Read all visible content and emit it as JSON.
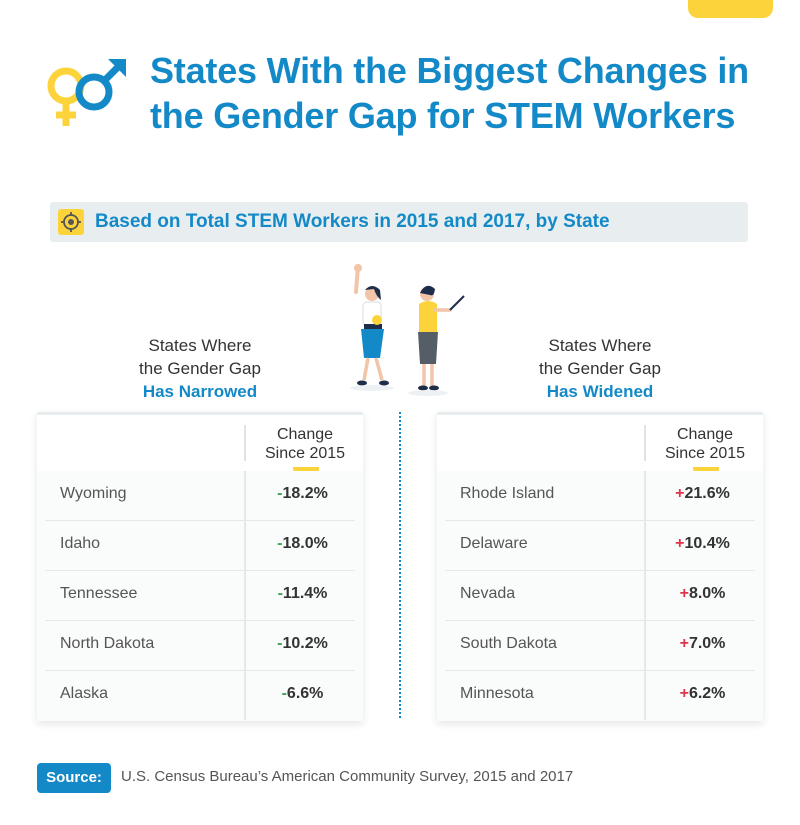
{
  "header": {
    "title": "States With the Biggest Changes in the Gender Gap for STEM Workers",
    "subtitle": "Based on Total STEM Workers in 2015 and 2017, by State"
  },
  "left_panel": {
    "heading_line1": "States Where",
    "heading_line2": "the Gender Gap",
    "heading_highlight": "Has Narrowed",
    "column_header_line1": "Change",
    "column_header_line2": "Since 2015",
    "rows": [
      {
        "state": "Wyoming",
        "sign": "-",
        "value": "18.2%"
      },
      {
        "state": "Idaho",
        "sign": "-",
        "value": "18.0%"
      },
      {
        "state": "Tennessee",
        "sign": "-",
        "value": "11.4%"
      },
      {
        "state": "North Dakota",
        "sign": "-",
        "value": "10.2%"
      },
      {
        "state": "Alaska",
        "sign": "-",
        "value": "6.6%"
      }
    ]
  },
  "right_panel": {
    "heading_line1": "States Where",
    "heading_line2": "the Gender Gap",
    "heading_highlight": "Has Widened",
    "column_header_line1": "Change",
    "column_header_line2": "Since 2015",
    "rows": [
      {
        "state": "Rhode Island",
        "sign": "+",
        "value": "21.6%"
      },
      {
        "state": "Delaware",
        "sign": "+",
        "value": "10.4%"
      },
      {
        "state": "Nevada",
        "sign": "+",
        "value": "8.0%"
      },
      {
        "state": "South Dakota",
        "sign": "+",
        "value": "7.0%"
      },
      {
        "state": "Minnesota",
        "sign": "+",
        "value": "6.2%"
      }
    ]
  },
  "source": {
    "label": "Source:",
    "text": "U.S. Census Bureau’s American Community Survey, 2015 and 2017"
  },
  "colors": {
    "title_blue": "#1489c8",
    "accent_yellow": "#fdd33b",
    "negative_green": "#3aa35a",
    "positive_red": "#e0334a"
  },
  "icons": [
    "gender-symbols-icon",
    "target-icon",
    "women-illustration"
  ],
  "chart_data": {
    "type": "table",
    "title": "States With the Biggest Changes in the Gender Gap for STEM Workers",
    "subtitle": "Based on Total STEM Workers in 2015 and 2017, by State",
    "tables": [
      {
        "name": "Has Narrowed",
        "column": "Change Since 2015",
        "categories": [
          "Wyoming",
          "Idaho",
          "Tennessee",
          "North Dakota",
          "Alaska"
        ],
        "values": [
          -18.2,
          -18.0,
          -11.4,
          -10.2,
          -6.6
        ]
      },
      {
        "name": "Has Widened",
        "column": "Change Since 2015",
        "categories": [
          "Rhode Island",
          "Delaware",
          "Nevada",
          "South Dakota",
          "Minnesota"
        ],
        "values": [
          21.6,
          10.4,
          8.0,
          7.0,
          6.2
        ]
      }
    ]
  }
}
